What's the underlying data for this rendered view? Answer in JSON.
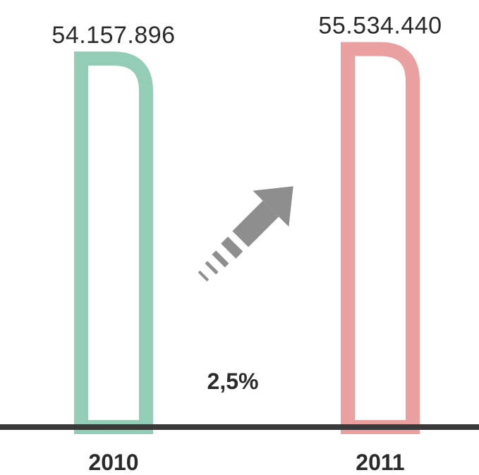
{
  "chart_data": {
    "type": "bar",
    "categories": [
      "2010",
      "2011"
    ],
    "values": [
      54157896,
      55534440
    ],
    "value_labels": [
      "54.157.896",
      "55.534.440"
    ],
    "bar_colors": [
      "#93cdb5",
      "#eba0a0"
    ],
    "bar_style": "outlined",
    "ylim": [
      0,
      56000000
    ],
    "grid": false,
    "title": "",
    "xlabel": "",
    "ylabel": "",
    "annotation": {
      "text": "2,5%",
      "icon": "dashed-arrow-up-right-icon",
      "icon_color": "#8e8e8e"
    },
    "baseline_color": "#3a3a3a"
  }
}
